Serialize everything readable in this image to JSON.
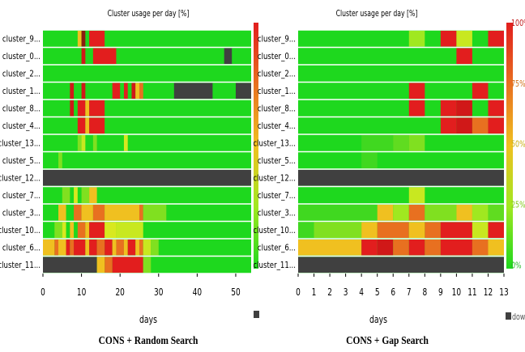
{
  "chart_data": [
    {
      "type": "heatmap",
      "title": "Cluster usage per day [%]",
      "caption": "CONS + Random Search",
      "xlabel": "days",
      "rows": [
        "cluster_9...",
        "cluster_0...",
        "cluster_2...",
        "cluster_1...",
        "cluster_8...",
        "cluster_4...",
        "cluster_13...",
        "cluster_5...",
        "cluster_12...",
        "cluster_7...",
        "cluster_3...",
        "cluster_10...",
        "cluster_6...",
        "cluster_11..."
      ],
      "xlim": [
        0,
        54
      ],
      "xticks": [
        "0",
        "10",
        "20",
        "30",
        "40",
        "50"
      ],
      "xtick_values": [
        0,
        10,
        20,
        30,
        40,
        50
      ],
      "colorbar": {
        "ticks": [],
        "range": [
          0,
          100
        ]
      },
      "legend": {
        "label": "",
        "swatch_color": "#404040"
      },
      "base_color": "#1ed81e",
      "cells": [
        {
          "row": 0,
          "x0": 9,
          "x1": 10,
          "color": "#f0c020"
        },
        {
          "row": 0,
          "x0": 10,
          "x1": 11,
          "color": "#8a1c10"
        },
        {
          "row": 0,
          "x0": 12,
          "x1": 16,
          "color": "#e21e1e"
        },
        {
          "row": 1,
          "x0": 10,
          "x1": 11,
          "color": "#d01818"
        },
        {
          "row": 1,
          "x0": 13,
          "x1": 19,
          "color": "#e21e1e"
        },
        {
          "row": 1,
          "x0": 47,
          "x1": 49,
          "color": "#404040"
        },
        {
          "row": 3,
          "x0": 7,
          "x1": 8,
          "color": "#d01818"
        },
        {
          "row": 3,
          "x0": 10,
          "x1": 11,
          "color": "#d01818"
        },
        {
          "row": 3,
          "x0": 18,
          "x1": 20,
          "color": "#e21e1e"
        },
        {
          "row": 3,
          "x0": 21,
          "x1": 22,
          "color": "#e21e1e"
        },
        {
          "row": 3,
          "x0": 23,
          "x1": 24,
          "color": "#d01818"
        },
        {
          "row": 3,
          "x0": 24,
          "x1": 25,
          "color": "#f0c020"
        },
        {
          "row": 3,
          "x0": 25,
          "x1": 26,
          "color": "#e87020"
        },
        {
          "row": 3,
          "x0": 34,
          "x1": 44,
          "color": "#404040"
        },
        {
          "row": 3,
          "x0": 50,
          "x1": 54,
          "color": "#404040"
        },
        {
          "row": 4,
          "x0": 7,
          "x1": 8,
          "color": "#d01818"
        },
        {
          "row": 4,
          "x0": 9,
          "x1": 11,
          "color": "#e21e1e"
        },
        {
          "row": 4,
          "x0": 11,
          "x1": 12,
          "color": "#f0c020"
        },
        {
          "row": 4,
          "x0": 12,
          "x1": 16,
          "color": "#e21e1e"
        },
        {
          "row": 5,
          "x0": 9,
          "x1": 11,
          "color": "#e21e1e"
        },
        {
          "row": 5,
          "x0": 11,
          "x1": 12,
          "color": "#f0c020"
        },
        {
          "row": 5,
          "x0": 12,
          "x1": 16,
          "color": "#e21e1e"
        },
        {
          "row": 6,
          "x0": 9,
          "x1": 10,
          "color": "#80e020"
        },
        {
          "row": 6,
          "x0": 10,
          "x1": 11,
          "color": "#c8e820"
        },
        {
          "row": 6,
          "x0": 13,
          "x1": 14,
          "color": "#80e020"
        },
        {
          "row": 6,
          "x0": 21,
          "x1": 22,
          "color": "#d8e820"
        },
        {
          "row": 7,
          "x0": 4,
          "x1": 5,
          "color": "#80e020"
        },
        {
          "row": 8,
          "x0": 0,
          "x1": 54,
          "color": "#404040"
        },
        {
          "row": 9,
          "x0": 5,
          "x1": 7,
          "color": "#80e020"
        },
        {
          "row": 9,
          "x0": 8,
          "x1": 9,
          "color": "#d8e820"
        },
        {
          "row": 9,
          "x0": 10,
          "x1": 12,
          "color": "#80e020"
        },
        {
          "row": 9,
          "x0": 12,
          "x1": 14,
          "color": "#f0c020"
        },
        {
          "row": 10,
          "x0": 4,
          "x1": 6,
          "color": "#f0c020"
        },
        {
          "row": 10,
          "x0": 8,
          "x1": 10,
          "color": "#e87020"
        },
        {
          "row": 10,
          "x0": 10,
          "x1": 13,
          "color": "#f0c020"
        },
        {
          "row": 10,
          "x0": 13,
          "x1": 16,
          "color": "#e87020"
        },
        {
          "row": 10,
          "x0": 16,
          "x1": 25,
          "color": "#f0c020"
        },
        {
          "row": 10,
          "x0": 25,
          "x1": 26,
          "color": "#e87020"
        },
        {
          "row": 10,
          "x0": 26,
          "x1": 32,
          "color": "#80e020"
        },
        {
          "row": 11,
          "x0": 3,
          "x1": 5,
          "color": "#80e020"
        },
        {
          "row": 11,
          "x0": 5,
          "x1": 6,
          "color": "#d8e820"
        },
        {
          "row": 11,
          "x0": 7,
          "x1": 8,
          "color": "#f0c020"
        },
        {
          "row": 11,
          "x0": 9,
          "x1": 11,
          "color": "#e87020"
        },
        {
          "row": 11,
          "x0": 11,
          "x1": 12,
          "color": "#f0c020"
        },
        {
          "row": 11,
          "x0": 12,
          "x1": 16,
          "color": "#e21e1e"
        },
        {
          "row": 11,
          "x0": 16,
          "x1": 19,
          "color": "#d8e820"
        },
        {
          "row": 11,
          "x0": 19,
          "x1": 26,
          "color": "#c8e820"
        },
        {
          "row": 12,
          "x0": 0,
          "x1": 3,
          "color": "#f0c020"
        },
        {
          "row": 12,
          "x0": 3,
          "x1": 4,
          "color": "#e87020"
        },
        {
          "row": 12,
          "x0": 4,
          "x1": 6,
          "color": "#f0c020"
        },
        {
          "row": 12,
          "x0": 6,
          "x1": 7,
          "color": "#e21e1e"
        },
        {
          "row": 12,
          "x0": 7,
          "x1": 8,
          "color": "#e87020"
        },
        {
          "row": 12,
          "x0": 8,
          "x1": 11,
          "color": "#e21e1e"
        },
        {
          "row": 12,
          "x0": 11,
          "x1": 12,
          "color": "#f0c020"
        },
        {
          "row": 12,
          "x0": 12,
          "x1": 14,
          "color": "#e21e1e"
        },
        {
          "row": 12,
          "x0": 14,
          "x1": 16,
          "color": "#e87020"
        },
        {
          "row": 12,
          "x0": 16,
          "x1": 18,
          "color": "#e21e1e"
        },
        {
          "row": 12,
          "x0": 18,
          "x1": 19,
          "color": "#f0c020"
        },
        {
          "row": 12,
          "x0": 19,
          "x1": 21,
          "color": "#e87020"
        },
        {
          "row": 12,
          "x0": 21,
          "x1": 22,
          "color": "#f0c020"
        },
        {
          "row": 12,
          "x0": 22,
          "x1": 24,
          "color": "#e21e1e"
        },
        {
          "row": 12,
          "x0": 24,
          "x1": 25,
          "color": "#f0c020"
        },
        {
          "row": 12,
          "x0": 25,
          "x1": 26,
          "color": "#e87020"
        },
        {
          "row": 12,
          "x0": 26,
          "x1": 28,
          "color": "#c8e820"
        },
        {
          "row": 12,
          "x0": 28,
          "x1": 30,
          "color": "#80e020"
        },
        {
          "row": 13,
          "x0": 0,
          "x1": 14,
          "color": "#404040"
        },
        {
          "row": 13,
          "x0": 14,
          "x1": 16,
          "color": "#f0c020"
        },
        {
          "row": 13,
          "x0": 16,
          "x1": 18,
          "color": "#e87020"
        },
        {
          "row": 13,
          "x0": 18,
          "x1": 26,
          "color": "#e21e1e"
        },
        {
          "row": 13,
          "x0": 26,
          "x1": 28,
          "color": "#80e020"
        }
      ]
    },
    {
      "type": "heatmap",
      "title": "Cluster usage per day [%]",
      "caption": "CONS + Gap Search",
      "xlabel": "days",
      "rows": [
        "cluster_9...",
        "cluster_0...",
        "cluster_2...",
        "cluster_1...",
        "cluster_8...",
        "cluster_4...",
        "cluster_13...",
        "cluster_5...",
        "cluster_12...",
        "cluster_7...",
        "cluster_3...",
        "cluster_10...",
        "cluster_6...",
        "cluster_11..."
      ],
      "xlim": [
        0,
        13
      ],
      "xticks": [
        "0",
        "1",
        "2",
        "3",
        "4",
        "5",
        "6",
        "7",
        "8",
        "9",
        "10",
        "11",
        "12",
        "13"
      ],
      "xtick_values": [
        0,
        1,
        2,
        3,
        4,
        5,
        6,
        7,
        8,
        9,
        10,
        11,
        12,
        13
      ],
      "colorbar": {
        "ticks": [
          "100%",
          "75%",
          "50%",
          "25%",
          "0%"
        ],
        "range": [
          0,
          100
        ]
      },
      "legend": {
        "label": "down",
        "swatch_color": "#404040"
      },
      "base_color": "#1ed81e",
      "cells": [
        {
          "row": 0,
          "x0": 7,
          "x1": 8,
          "color": "#a0e820"
        },
        {
          "row": 0,
          "x0": 9,
          "x1": 10,
          "color": "#e21e1e"
        },
        {
          "row": 0,
          "x0": 10,
          "x1": 11,
          "color": "#c8e820"
        },
        {
          "row": 0,
          "x0": 12,
          "x1": 13,
          "color": "#e21e1e"
        },
        {
          "row": 1,
          "x0": 10,
          "x1": 11,
          "color": "#e21e1e"
        },
        {
          "row": 3,
          "x0": 7,
          "x1": 8,
          "color": "#e21e1e"
        },
        {
          "row": 3,
          "x0": 11,
          "x1": 12,
          "color": "#e21e1e"
        },
        {
          "row": 4,
          "x0": 7,
          "x1": 8,
          "color": "#e21e1e"
        },
        {
          "row": 4,
          "x0": 9,
          "x1": 10,
          "color": "#e21e1e"
        },
        {
          "row": 4,
          "x0": 10,
          "x1": 11,
          "color": "#d01818"
        },
        {
          "row": 4,
          "x0": 12,
          "x1": 13,
          "color": "#e21e1e"
        },
        {
          "row": 5,
          "x0": 9,
          "x1": 10,
          "color": "#e21e1e"
        },
        {
          "row": 5,
          "x0": 10,
          "x1": 11,
          "color": "#d01818"
        },
        {
          "row": 5,
          "x0": 11,
          "x1": 12,
          "color": "#e87020"
        },
        {
          "row": 5,
          "x0": 12,
          "x1": 13,
          "color": "#e21e1e"
        },
        {
          "row": 6,
          "x0": 4,
          "x1": 6,
          "color": "#40d820"
        },
        {
          "row": 6,
          "x0": 6,
          "x1": 7,
          "color": "#60dc20"
        },
        {
          "row": 6,
          "x0": 7,
          "x1": 8,
          "color": "#80e020"
        },
        {
          "row": 7,
          "x0": 4,
          "x1": 5,
          "color": "#40d820"
        },
        {
          "row": 8,
          "x0": 0,
          "x1": 13,
          "color": "#404040"
        },
        {
          "row": 9,
          "x0": 7,
          "x1": 8,
          "color": "#c8e820"
        },
        {
          "row": 10,
          "x0": 0,
          "x1": 5,
          "color": "#40d820"
        },
        {
          "row": 10,
          "x0": 5,
          "x1": 6,
          "color": "#f0c020"
        },
        {
          "row": 10,
          "x0": 6,
          "x1": 7,
          "color": "#a0e820"
        },
        {
          "row": 10,
          "x0": 7,
          "x1": 8,
          "color": "#e87020"
        },
        {
          "row": 10,
          "x0": 8,
          "x1": 10,
          "color": "#80e020"
        },
        {
          "row": 10,
          "x0": 10,
          "x1": 11,
          "color": "#f0c020"
        },
        {
          "row": 10,
          "x0": 11,
          "x1": 12,
          "color": "#a0e820"
        },
        {
          "row": 10,
          "x0": 12,
          "x1": 13,
          "color": "#60dc20"
        },
        {
          "row": 11,
          "x0": 0,
          "x1": 1,
          "color": "#40d820"
        },
        {
          "row": 11,
          "x0": 1,
          "x1": 4,
          "color": "#80e020"
        },
        {
          "row": 11,
          "x0": 4,
          "x1": 5,
          "color": "#f0c020"
        },
        {
          "row": 11,
          "x0": 5,
          "x1": 7,
          "color": "#e87020"
        },
        {
          "row": 11,
          "x0": 7,
          "x1": 8,
          "color": "#f0c020"
        },
        {
          "row": 11,
          "x0": 8,
          "x1": 9,
          "color": "#e87020"
        },
        {
          "row": 11,
          "x0": 9,
          "x1": 11,
          "color": "#e21e1e"
        },
        {
          "row": 11,
          "x0": 11,
          "x1": 12,
          "color": "#c8e820"
        },
        {
          "row": 11,
          "x0": 12,
          "x1": 13,
          "color": "#e21e1e"
        },
        {
          "row": 12,
          "x0": 0,
          "x1": 4,
          "color": "#f0c020"
        },
        {
          "row": 12,
          "x0": 4,
          "x1": 5,
          "color": "#e21e1e"
        },
        {
          "row": 12,
          "x0": 5,
          "x1": 6,
          "color": "#d01818"
        },
        {
          "row": 12,
          "x0": 6,
          "x1": 7,
          "color": "#e87020"
        },
        {
          "row": 12,
          "x0": 7,
          "x1": 8,
          "color": "#e21e1e"
        },
        {
          "row": 12,
          "x0": 8,
          "x1": 9,
          "color": "#e87020"
        },
        {
          "row": 12,
          "x0": 9,
          "x1": 11,
          "color": "#e21e1e"
        },
        {
          "row": 12,
          "x0": 11,
          "x1": 12,
          "color": "#e87020"
        },
        {
          "row": 12,
          "x0": 12,
          "x1": 13,
          "color": "#f0c020"
        },
        {
          "row": 13,
          "x0": 0,
          "x1": 13,
          "color": "#404040"
        }
      ]
    }
  ]
}
